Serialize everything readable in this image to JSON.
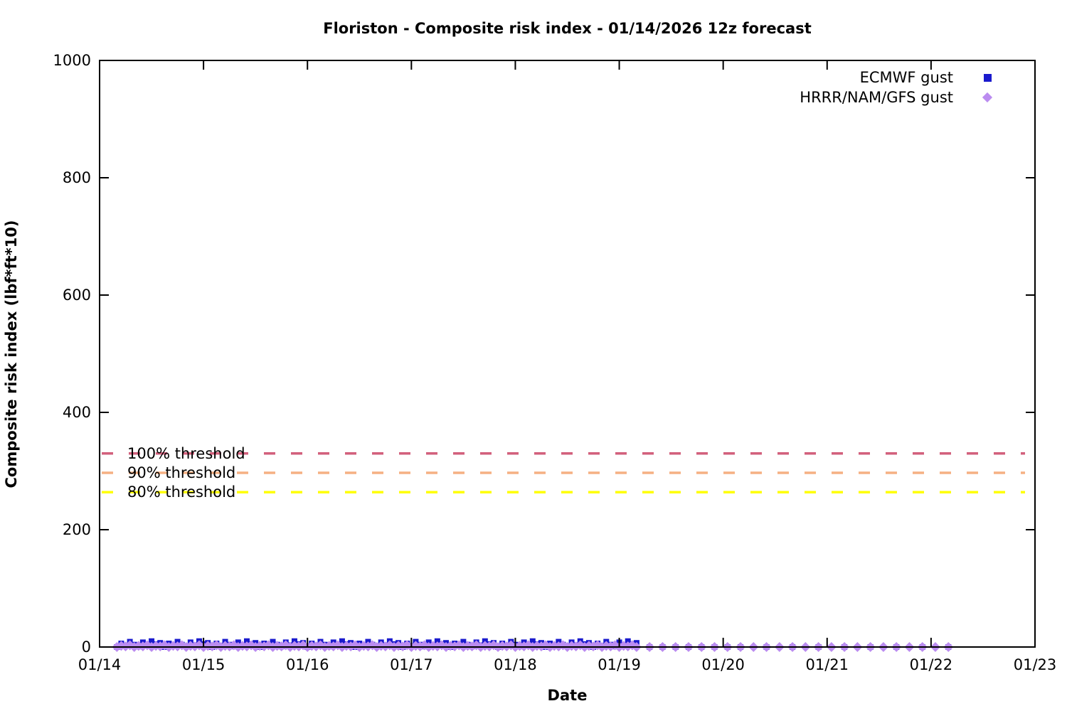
{
  "title": "Floriston - Composite risk index - 01/14/2026 12z forecast",
  "axes": {
    "xlabel": "Date",
    "ylabel": "Composite risk index (lbf*ft*10)",
    "x_tick_labels": [
      "01/14",
      "01/15",
      "01/16",
      "01/17",
      "01/18",
      "01/19",
      "01/20",
      "01/21",
      "01/22",
      "01/23"
    ],
    "y_tick_labels": [
      "0",
      "200",
      "400",
      "600",
      "800",
      "1000"
    ]
  },
  "legend": {
    "items": [
      {
        "label": "ECMWF gust",
        "marker": "square",
        "color": "#1a1acd"
      },
      {
        "label": "HRRR/NAM/GFS gust",
        "marker": "diamond",
        "color": "#bb8cf0"
      }
    ]
  },
  "chart_data": {
    "type": "scatter",
    "title": "Floriston - Composite risk index - 01/14/2026 12z forecast",
    "xlabel": "Date",
    "ylabel": "Composite risk index (lbf*ft*10)",
    "x_axis": {
      "start_label": "01/14",
      "end_label": "01/23",
      "span_days": 9,
      "tick_interval_days": 1
    },
    "ylim": [
      0,
      1000
    ],
    "y_tick_values": [
      0,
      200,
      400,
      600,
      800,
      1000
    ],
    "grid": false,
    "legend_position": "top-right-inside",
    "thresholds": [
      {
        "label": "100% threshold",
        "value": 330,
        "color": "#d2607c",
        "style": "dashed"
      },
      {
        "label": "90% threshold",
        "value": 297,
        "color": "#f5b183",
        "style": "dashed"
      },
      {
        "label": "80% threshold",
        "value": 264,
        "color": "#ffff00",
        "style": "dashed"
      }
    ],
    "series": [
      {
        "name": "ECMWF gust",
        "marker": "square",
        "color": "#1a1acd",
        "value_near": 0,
        "value_range": [
          0,
          10
        ],
        "sample_segments_hours_after_0114_0000": [
          {
            "start_h": 4,
            "end_h": 124,
            "step_h": 1
          },
          {
            "start_h": 127,
            "end_h": 148,
            "step_h": 3
          },
          {
            "start_h": 154,
            "end_h": 196,
            "step_h": 6
          }
        ]
      },
      {
        "name": "HRRR/NAM/GFS gust",
        "marker": "diamond",
        "color": "#bb8cf0",
        "value_near": 0,
        "value_range": [
          0,
          4
        ],
        "sample_segments_hours_after_0114_0000": [
          {
            "start_h": 4,
            "end_h": 124,
            "step_h": 1
          },
          {
            "start_h": 127,
            "end_h": 196,
            "step_h": 3
          }
        ]
      }
    ]
  }
}
